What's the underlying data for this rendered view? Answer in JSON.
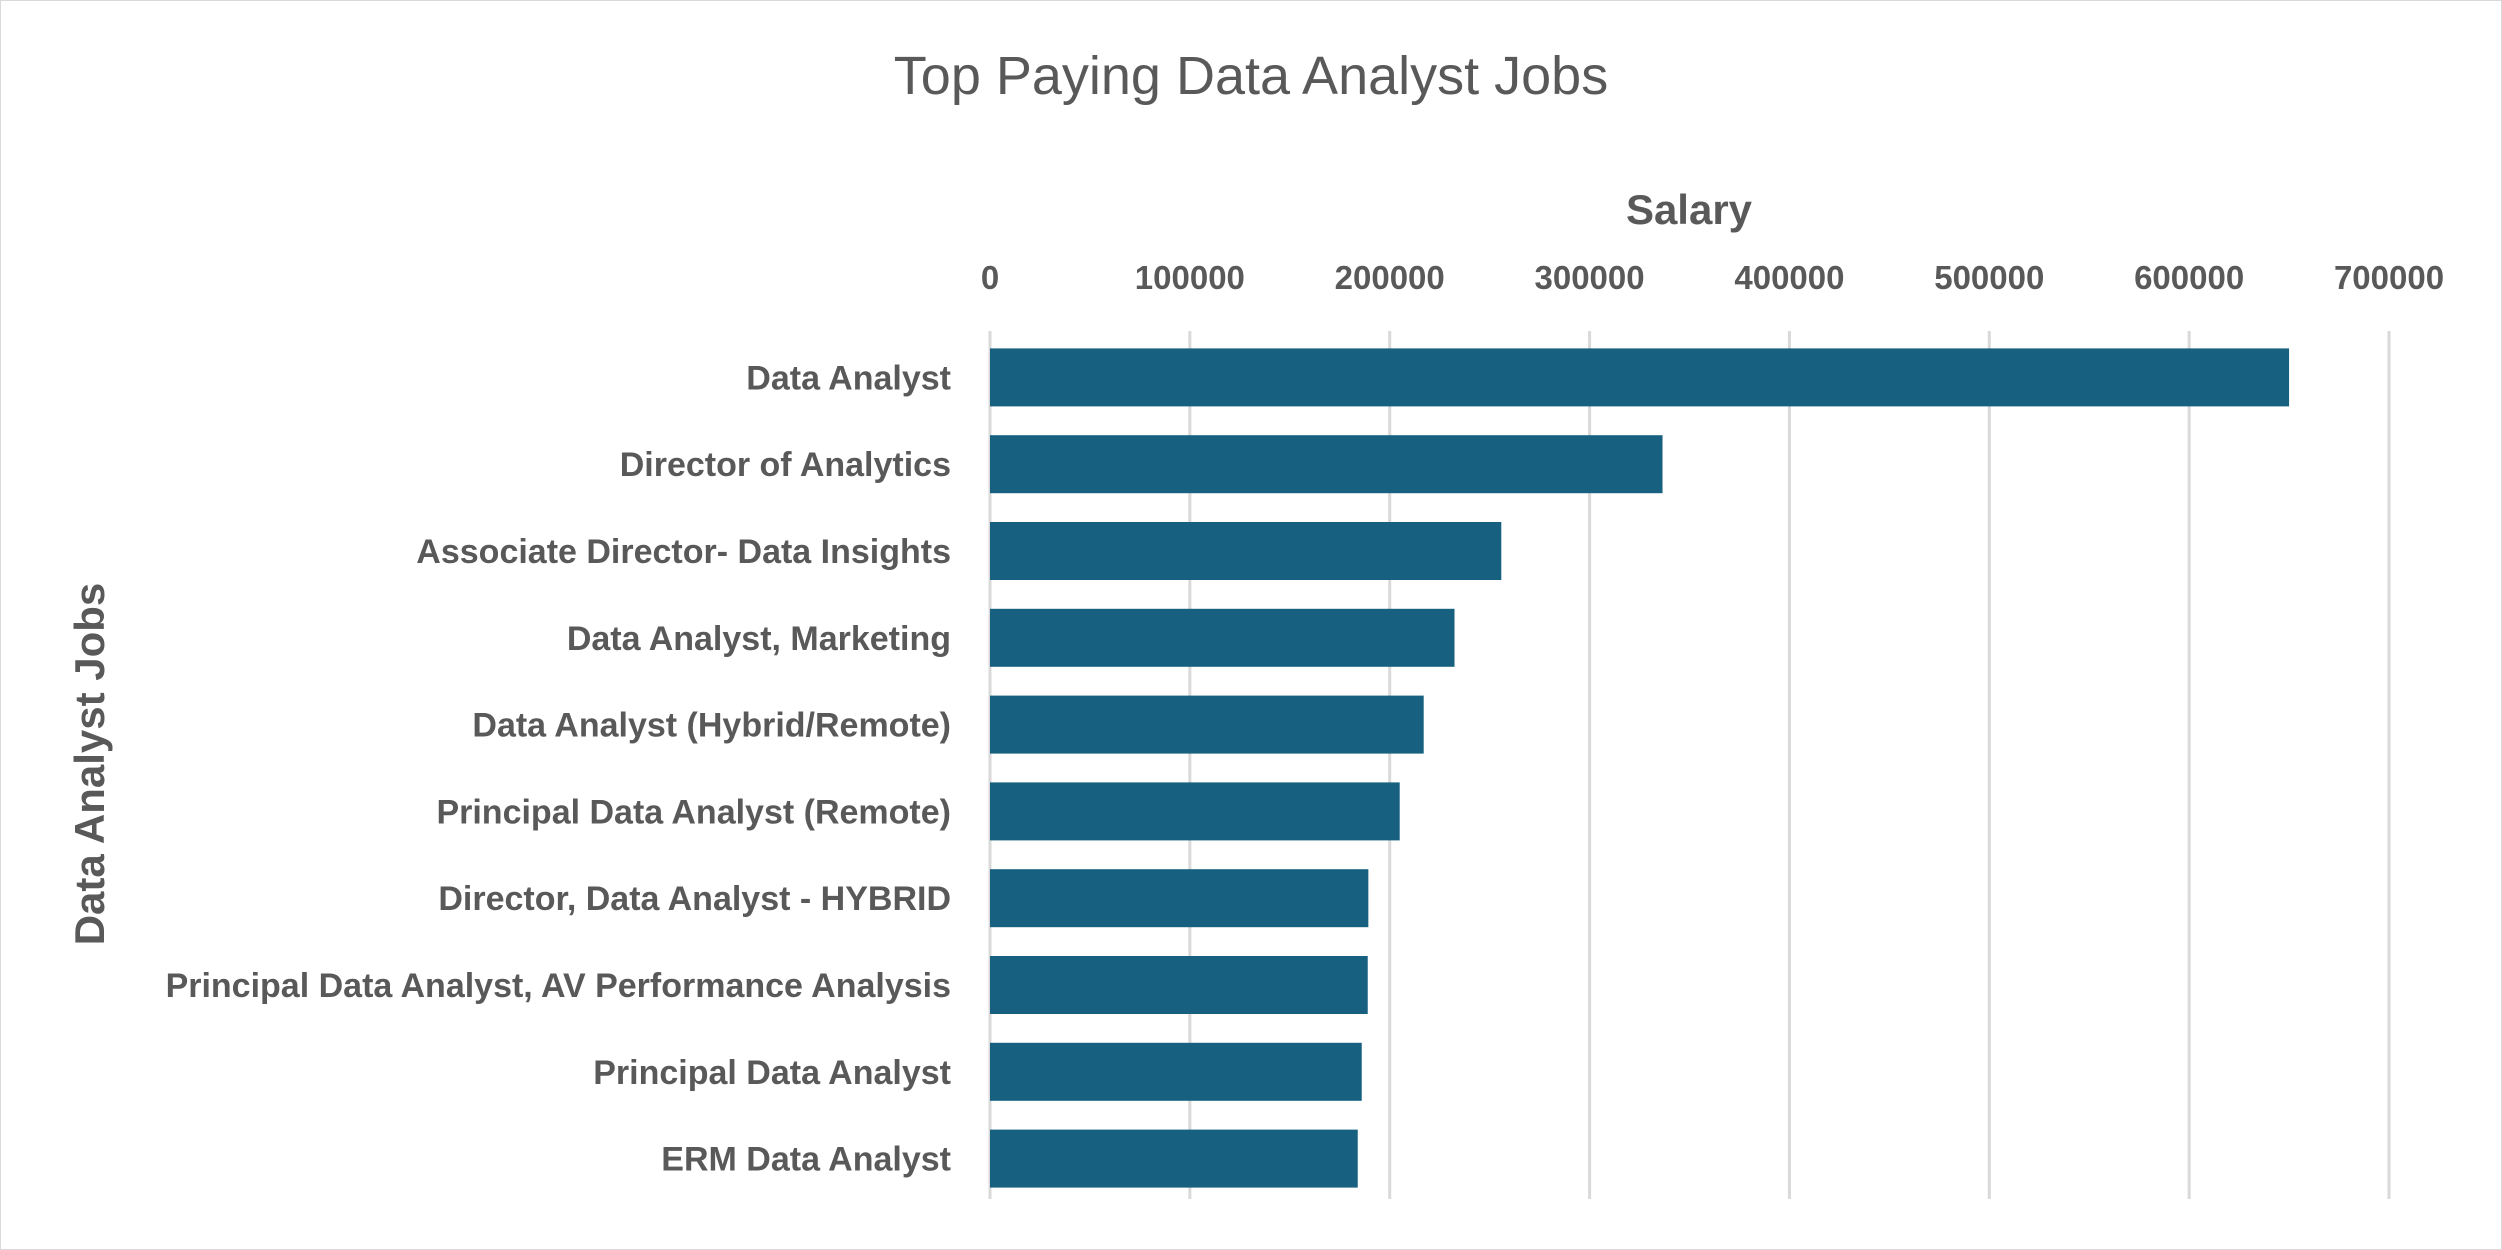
{
  "chart_data": {
    "type": "bar",
    "orientation": "horizontal",
    "title": "Top Paying Data Analyst Jobs",
    "xlabel": "Salary",
    "ylabel": "Data Analyst Jobs",
    "xlim": [
      0,
      700000
    ],
    "x_axis_position": "top",
    "x_ticks": [
      "0",
      "100000",
      "200000",
      "300000",
      "400000",
      "500000",
      "600000",
      "700000"
    ],
    "grid": true,
    "legend": "none",
    "bar_color": "#17607f",
    "categories": [
      "Data Analyst",
      "Director of Analytics",
      "Associate Director- Data Insights",
      "Data Analyst, Marketing",
      "Data Analyst (Hybrid/Remote)",
      "Principal Data Analyst (Remote)",
      "Director, Data Analyst - HYBRID",
      "Principal Data Analyst, AV Performance Analysis",
      "Principal Data Analyst",
      "ERM Data Analyst"
    ],
    "values": [
      650000,
      336500,
      255830,
      232423,
      217000,
      205000,
      189309,
      189000,
      186000,
      184000
    ]
  }
}
